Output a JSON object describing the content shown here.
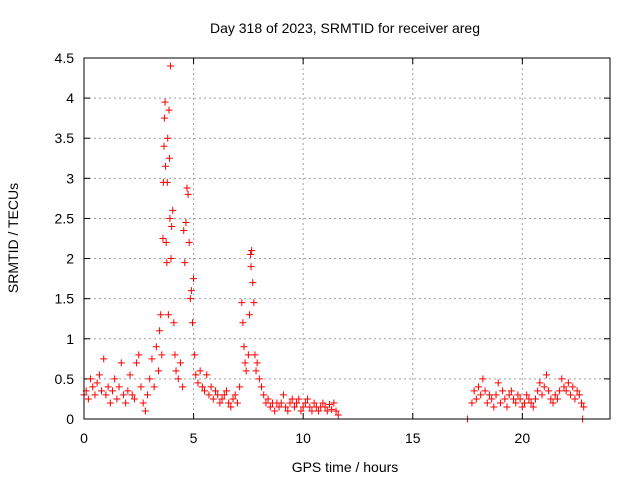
{
  "chart_data": {
    "type": "scatter",
    "title": "Day 318 of 2023, SRMTID for receiver areg",
    "xlabel": "GPS time / hours",
    "ylabel": "SRMTID / TECUs",
    "xlim": [
      0,
      24
    ],
    "ylim": [
      0,
      4.5
    ],
    "xticks": [
      0,
      5,
      10,
      15,
      20
    ],
    "xtick_labels": [
      "0",
      "5",
      "10",
      "15",
      "20"
    ],
    "yticks": [
      0,
      0.5,
      1,
      1.5,
      2,
      2.5,
      3,
      3.5,
      4,
      4.5
    ],
    "ytick_labels": [
      "0",
      "0.5",
      "1",
      "1.5",
      "2",
      "2.5",
      "3",
      "3.5",
      "4",
      "4.5"
    ],
    "grid": true,
    "marker": "+",
    "series": [
      {
        "name": "SRMTID",
        "color": "#ff0000",
        "points": [
          [
            0.0,
            0.3
          ],
          [
            0.1,
            0.35
          ],
          [
            0.2,
            0.25
          ],
          [
            0.3,
            0.5
          ],
          [
            0.4,
            0.4
          ],
          [
            0.5,
            0.3
          ],
          [
            0.6,
            0.45
          ],
          [
            0.7,
            0.55
          ],
          [
            0.8,
            0.35
          ],
          [
            0.9,
            0.75
          ],
          [
            1.0,
            0.3
          ],
          [
            1.1,
            0.4
          ],
          [
            1.2,
            0.2
          ],
          [
            1.3,
            0.35
          ],
          [
            1.4,
            0.5
          ],
          [
            1.5,
            0.25
          ],
          [
            1.6,
            0.4
          ],
          [
            1.7,
            0.7
          ],
          [
            1.8,
            0.3
          ],
          [
            1.9,
            0.2
          ],
          [
            2.0,
            0.35
          ],
          [
            2.1,
            0.55
          ],
          [
            2.2,
            0.3
          ],
          [
            2.3,
            0.25
          ],
          [
            2.4,
            0.7
          ],
          [
            2.5,
            0.8
          ],
          [
            2.6,
            0.4
          ],
          [
            2.7,
            0.2
          ],
          [
            2.8,
            0.1
          ],
          [
            2.9,
            0.3
          ],
          [
            3.0,
            0.5
          ],
          [
            3.1,
            0.75
          ],
          [
            3.2,
            0.4
          ],
          [
            3.3,
            0.9
          ],
          [
            3.4,
            0.6
          ],
          [
            3.45,
            1.1
          ],
          [
            3.5,
            1.3
          ],
          [
            3.55,
            0.8
          ],
          [
            3.6,
            2.25
          ],
          [
            3.62,
            2.95
          ],
          [
            3.65,
            3.4
          ],
          [
            3.67,
            3.75
          ],
          [
            3.7,
            3.95
          ],
          [
            3.72,
            3.15
          ],
          [
            3.75,
            2.2
          ],
          [
            3.78,
            1.95
          ],
          [
            3.8,
            2.95
          ],
          [
            3.82,
            3.5
          ],
          [
            3.85,
            1.3
          ],
          [
            3.88,
            3.85
          ],
          [
            3.9,
            3.25
          ],
          [
            3.92,
            2.5
          ],
          [
            3.95,
            4.4
          ],
          [
            3.97,
            2.0
          ],
          [
            4.0,
            2.4
          ],
          [
            4.05,
            2.6
          ],
          [
            4.1,
            1.2
          ],
          [
            4.15,
            0.8
          ],
          [
            4.2,
            0.6
          ],
          [
            4.3,
            0.5
          ],
          [
            4.4,
            0.7
          ],
          [
            4.5,
            0.4
          ],
          [
            4.55,
            2.35
          ],
          [
            4.6,
            1.95
          ],
          [
            4.65,
            2.45
          ],
          [
            4.7,
            2.88
          ],
          [
            4.75,
            2.8
          ],
          [
            4.8,
            2.2
          ],
          [
            4.85,
            1.5
          ],
          [
            4.9,
            1.6
          ],
          [
            4.95,
            1.2
          ],
          [
            5.0,
            1.75
          ],
          [
            5.05,
            0.8
          ],
          [
            5.1,
            0.55
          ],
          [
            5.2,
            0.45
          ],
          [
            5.3,
            0.6
          ],
          [
            5.4,
            0.4
          ],
          [
            5.5,
            0.35
          ],
          [
            5.6,
            0.55
          ],
          [
            5.7,
            0.3
          ],
          [
            5.8,
            0.4
          ],
          [
            5.9,
            0.25
          ],
          [
            6.0,
            0.35
          ],
          [
            6.1,
            0.3
          ],
          [
            6.2,
            0.2
          ],
          [
            6.3,
            0.25
          ],
          [
            6.4,
            0.3
          ],
          [
            6.5,
            0.35
          ],
          [
            6.6,
            0.2
          ],
          [
            6.7,
            0.15
          ],
          [
            6.8,
            0.25
          ],
          [
            6.9,
            0.3
          ],
          [
            7.0,
            0.2
          ],
          [
            7.1,
            0.4
          ],
          [
            7.2,
            1.45
          ],
          [
            7.25,
            1.2
          ],
          [
            7.3,
            0.9
          ],
          [
            7.35,
            0.7
          ],
          [
            7.4,
            0.6
          ],
          [
            7.5,
            0.8
          ],
          [
            7.55,
            1.3
          ],
          [
            7.6,
            2.05
          ],
          [
            7.62,
            1.9
          ],
          [
            7.65,
            2.1
          ],
          [
            7.7,
            1.7
          ],
          [
            7.75,
            1.45
          ],
          [
            7.8,
            0.8
          ],
          [
            7.85,
            0.6
          ],
          [
            7.9,
            0.7
          ],
          [
            8.0,
            0.5
          ],
          [
            8.1,
            0.4
          ],
          [
            8.2,
            0.3
          ],
          [
            8.3,
            0.2
          ],
          [
            8.4,
            0.25
          ],
          [
            8.5,
            0.15
          ],
          [
            8.6,
            0.2
          ],
          [
            8.7,
            0.1
          ],
          [
            8.8,
            0.2
          ],
          [
            8.9,
            0.15
          ],
          [
            9.0,
            0.2
          ],
          [
            9.1,
            0.3
          ],
          [
            9.2,
            0.15
          ],
          [
            9.3,
            0.1
          ],
          [
            9.4,
            0.2
          ],
          [
            9.5,
            0.25
          ],
          [
            9.6,
            0.15
          ],
          [
            9.7,
            0.2
          ],
          [
            9.8,
            0.25
          ],
          [
            9.9,
            0.1
          ],
          [
            10.0,
            0.15
          ],
          [
            10.1,
            0.2
          ],
          [
            10.2,
            0.25
          ],
          [
            10.3,
            0.15
          ],
          [
            10.4,
            0.1
          ],
          [
            10.5,
            0.2
          ],
          [
            10.6,
            0.15
          ],
          [
            10.7,
            0.1
          ],
          [
            10.8,
            0.15
          ],
          [
            10.9,
            0.2
          ],
          [
            11.0,
            0.15
          ],
          [
            11.1,
            0.1
          ],
          [
            11.2,
            0.18
          ],
          [
            11.3,
            0.12
          ],
          [
            11.4,
            0.2
          ],
          [
            11.5,
            0.1
          ],
          [
            11.6,
            0.05
          ],
          [
            17.5,
            0.0
          ],
          [
            17.7,
            0.2
          ],
          [
            17.8,
            0.35
          ],
          [
            17.9,
            0.25
          ],
          [
            18.0,
            0.4
          ],
          [
            18.1,
            0.3
          ],
          [
            18.2,
            0.5
          ],
          [
            18.3,
            0.35
          ],
          [
            18.4,
            0.2
          ],
          [
            18.5,
            0.3
          ],
          [
            18.6,
            0.25
          ],
          [
            18.7,
            0.15
          ],
          [
            18.8,
            0.3
          ],
          [
            18.9,
            0.45
          ],
          [
            19.0,
            0.2
          ],
          [
            19.1,
            0.35
          ],
          [
            19.2,
            0.25
          ],
          [
            19.3,
            0.15
          ],
          [
            19.4,
            0.3
          ],
          [
            19.5,
            0.35
          ],
          [
            19.6,
            0.25
          ],
          [
            19.7,
            0.2
          ],
          [
            19.8,
            0.3
          ],
          [
            19.9,
            0.25
          ],
          [
            20.0,
            0.15
          ],
          [
            20.1,
            0.2
          ],
          [
            20.2,
            0.3
          ],
          [
            20.3,
            0.25
          ],
          [
            20.4,
            0.2
          ],
          [
            20.5,
            0.15
          ],
          [
            20.6,
            0.25
          ],
          [
            20.7,
            0.35
          ],
          [
            20.8,
            0.45
          ],
          [
            20.9,
            0.3
          ],
          [
            21.0,
            0.4
          ],
          [
            21.1,
            0.55
          ],
          [
            21.2,
            0.35
          ],
          [
            21.3,
            0.25
          ],
          [
            21.4,
            0.2
          ],
          [
            21.5,
            0.3
          ],
          [
            21.6,
            0.25
          ],
          [
            21.7,
            0.35
          ],
          [
            21.8,
            0.5
          ],
          [
            21.9,
            0.4
          ],
          [
            22.0,
            0.35
          ],
          [
            22.1,
            0.45
          ],
          [
            22.2,
            0.3
          ],
          [
            22.3,
            0.4
          ],
          [
            22.4,
            0.25
          ],
          [
            22.5,
            0.35
          ],
          [
            22.6,
            0.3
          ],
          [
            22.7,
            0.2
          ],
          [
            22.8,
            0.15
          ],
          [
            22.75,
            0.0
          ]
        ]
      }
    ]
  }
}
